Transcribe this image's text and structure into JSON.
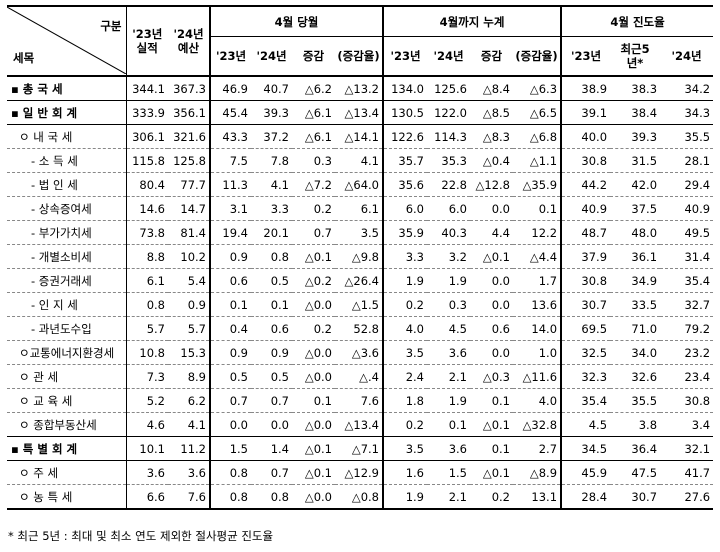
{
  "header": {
    "category": "구분",
    "item": "세목",
    "actual_23": "'23년\n실적",
    "budget_24": "'24년\n예산",
    "group_april": "4월 당월",
    "group_cumulative": "4월까지 누계",
    "group_progress": "4월 진도율",
    "sub_april": [
      "'23년",
      "'24년",
      "증감",
      "(증감율)"
    ],
    "sub_cumulative": [
      "'23년",
      "'24년",
      "증감",
      "(증감율)"
    ],
    "sub_progress": [
      "'23년",
      "최근5\n년*",
      "'24년"
    ]
  },
  "rows": [
    {
      "label": "▪ 총  국  세",
      "level": 0,
      "vals": [
        "344.1",
        "367.3",
        "46.9",
        "40.7",
        "△6.2",
        "△13.2",
        "134.0",
        "125.6",
        "△8.4",
        "△6.3",
        "38.9",
        "38.3",
        "34.2"
      ]
    },
    {
      "label": "▪ 일 반 회 계",
      "level": 0,
      "vals": [
        "333.9",
        "356.1",
        "45.4",
        "39.3",
        "△6.1",
        "△13.4",
        "130.5",
        "122.0",
        "△8.5",
        "△6.5",
        "39.1",
        "38.4",
        "34.3"
      ]
    },
    {
      "label": "ㅇ 내   국   세",
      "level": 1,
      "vals": [
        "306.1",
        "321.6",
        "43.3",
        "37.2",
        "△6.1",
        "△14.1",
        "122.6",
        "114.3",
        "△8.3",
        "△6.8",
        "40.0",
        "39.3",
        "35.5"
      ]
    },
    {
      "label": "- 소   득   세",
      "level": 2,
      "vals": [
        "115.8",
        "125.8",
        "7.5",
        "7.8",
        "0.3",
        "4.1",
        "35.7",
        "35.3",
        "△0.4",
        "△1.1",
        "30.8",
        "31.5",
        "28.1"
      ]
    },
    {
      "label": "- 법   인   세",
      "level": 2,
      "vals": [
        "80.4",
        "77.7",
        "11.3",
        "4.1",
        "△7.2",
        "△64.0",
        "35.6",
        "22.8",
        "△12.8",
        "△35.9",
        "44.2",
        "42.0",
        "29.4"
      ]
    },
    {
      "label": "- 상속증여세",
      "level": 2,
      "vals": [
        "14.6",
        "14.7",
        "3.1",
        "3.3",
        "0.2",
        "6.1",
        "6.0",
        "6.0",
        "0.0",
        "0.1",
        "40.9",
        "37.5",
        "40.9"
      ]
    },
    {
      "label": "- 부가가치세",
      "level": 2,
      "vals": [
        "73.8",
        "81.4",
        "19.4",
        "20.1",
        "0.7",
        "3.5",
        "35.9",
        "40.3",
        "4.4",
        "12.2",
        "48.7",
        "48.0",
        "49.5"
      ]
    },
    {
      "label": "- 개별소비세",
      "level": 2,
      "vals": [
        "8.8",
        "10.2",
        "0.9",
        "0.8",
        "△0.1",
        "△9.8",
        "3.3",
        "3.2",
        "△0.1",
        "△4.4",
        "37.9",
        "36.1",
        "31.4"
      ]
    },
    {
      "label": "- 증권거래세",
      "level": 2,
      "vals": [
        "6.1",
        "5.4",
        "0.6",
        "0.5",
        "△0.2",
        "△26.4",
        "1.9",
        "1.9",
        "0.0",
        "1.7",
        "30.8",
        "34.9",
        "35.4"
      ]
    },
    {
      "label": "- 인   지   세",
      "level": 2,
      "vals": [
        "0.8",
        "0.9",
        "0.1",
        "0.1",
        "△0.0",
        "△1.5",
        "0.2",
        "0.3",
        "0.0",
        "13.6",
        "30.7",
        "33.5",
        "32.7"
      ]
    },
    {
      "label": "- 과년도수입",
      "level": 2,
      "vals": [
        "5.7",
        "5.7",
        "0.4",
        "0.6",
        "0.2",
        "52.8",
        "4.0",
        "4.5",
        "0.6",
        "14.0",
        "69.5",
        "71.0",
        "79.2"
      ]
    },
    {
      "label": "ㅇ교통에너지환경세",
      "level": 1,
      "vals": [
        "10.8",
        "15.3",
        "0.9",
        "0.9",
        "△0.0",
        "△3.6",
        "3.5",
        "3.6",
        "0.0",
        "1.0",
        "32.5",
        "34.0",
        "23.2"
      ]
    },
    {
      "label": "ㅇ 관        세",
      "level": 1,
      "vals": [
        "7.3",
        "8.9",
        "0.5",
        "0.5",
        "△0.0",
        "△.4",
        "2.4",
        "2.1",
        "△0.3",
        "△11.6",
        "32.3",
        "32.6",
        "23.4"
      ]
    },
    {
      "label": "ㅇ 교   육   세",
      "level": 1,
      "vals": [
        "5.2",
        "6.2",
        "0.7",
        "0.7",
        "0.1",
        "7.6",
        "1.8",
        "1.9",
        "0.1",
        "4.0",
        "35.4",
        "35.5",
        "30.8"
      ]
    },
    {
      "label": "ㅇ 종합부동산세",
      "level": 1,
      "vals": [
        "4.6",
        "4.1",
        "0.0",
        "0.0",
        "△0.0",
        "△13.4",
        "0.2",
        "0.1",
        "△0.1",
        "△32.8",
        "4.5",
        "3.8",
        "3.4"
      ]
    },
    {
      "label": "▪ 특 별 회 계",
      "level": 0,
      "vals": [
        "10.1",
        "11.2",
        "1.5",
        "1.4",
        "△0.1",
        "△7.1",
        "3.5",
        "3.6",
        "0.1",
        "2.7",
        "34.5",
        "36.4",
        "32.1"
      ]
    },
    {
      "label": "ㅇ 주        세",
      "level": 1,
      "vals": [
        "3.6",
        "3.6",
        "0.8",
        "0.7",
        "△0.1",
        "△12.9",
        "1.6",
        "1.5",
        "△0.1",
        "△8.9",
        "45.9",
        "47.5",
        "41.7"
      ]
    },
    {
      "label": "ㅇ 농   특   세",
      "level": 1,
      "vals": [
        "6.6",
        "7.6",
        "0.8",
        "0.8",
        "△0.0",
        "△0.8",
        "1.9",
        "2.1",
        "0.2",
        "13.1",
        "28.4",
        "30.7",
        "27.6"
      ]
    }
  ],
  "note": "* 최근 5년 : 최대 및 최소 연도 제외한 절사평균 진도율"
}
